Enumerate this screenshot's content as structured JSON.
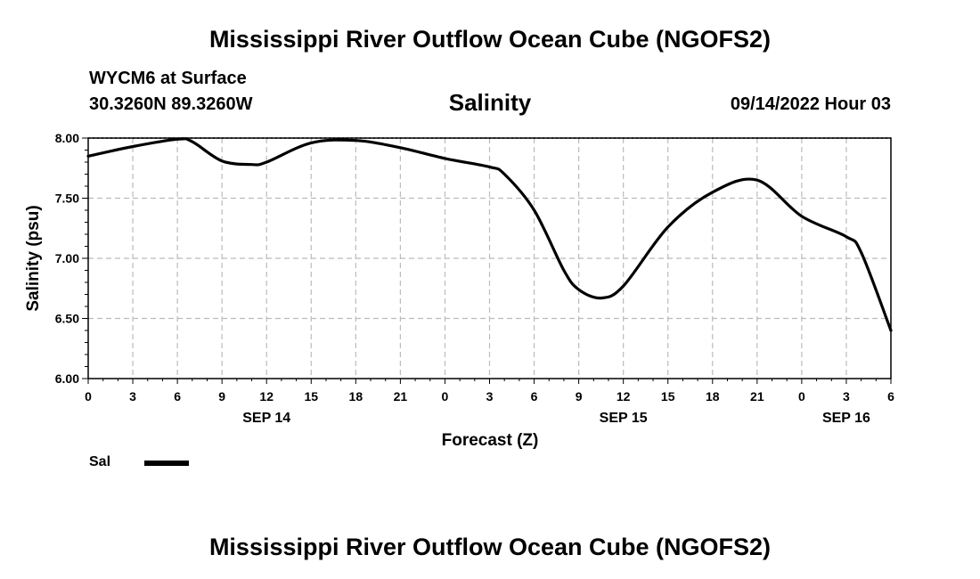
{
  "header": {
    "title_top": "Mississippi River Outflow Ocean Cube (NGOFS2)",
    "station": "WYCM6 at Surface",
    "coords": "30.3260N  89.3260W",
    "variable": "Salinity",
    "timestamp": "09/14/2022 Hour 03"
  },
  "legend": {
    "label": "Sal"
  },
  "footer": {
    "title_bottom": "Mississippi River Outflow Ocean Cube (NGOFS2)"
  },
  "chart_data": {
    "type": "line",
    "title": "Salinity",
    "xlabel": "Forecast (Z)",
    "ylabel": "Salinity (psu)",
    "xlim": [
      0,
      54
    ],
    "ylim": [
      6.0,
      8.0
    ],
    "grid": true,
    "x_ticks": [
      {
        "x": 0,
        "label": "0"
      },
      {
        "x": 3,
        "label": "3"
      },
      {
        "x": 6,
        "label": "6"
      },
      {
        "x": 9,
        "label": "9"
      },
      {
        "x": 12,
        "label": "12"
      },
      {
        "x": 15,
        "label": "15"
      },
      {
        "x": 18,
        "label": "18"
      },
      {
        "x": 21,
        "label": "21"
      },
      {
        "x": 24,
        "label": "0"
      },
      {
        "x": 27,
        "label": "3"
      },
      {
        "x": 30,
        "label": "6"
      },
      {
        "x": 33,
        "label": "9"
      },
      {
        "x": 36,
        "label": "12"
      },
      {
        "x": 39,
        "label": "15"
      },
      {
        "x": 42,
        "label": "18"
      },
      {
        "x": 45,
        "label": "21"
      },
      {
        "x": 48,
        "label": "0"
      },
      {
        "x": 51,
        "label": "3"
      },
      {
        "x": 54,
        "label": "6"
      }
    ],
    "date_labels": [
      {
        "x": 12,
        "label": "SEP 14"
      },
      {
        "x": 36,
        "label": "SEP 15"
      },
      {
        "x": 51,
        "label": "SEP 16"
      }
    ],
    "y_ticks": [
      {
        "y": 6.0,
        "label": "6.00"
      },
      {
        "y": 6.5,
        "label": "6.50"
      },
      {
        "y": 7.0,
        "label": "7.00"
      },
      {
        "y": 7.5,
        "label": "7.50"
      },
      {
        "y": 8.0,
        "label": "8.00"
      }
    ],
    "series": [
      {
        "name": "Sal",
        "x": [
          0,
          3,
          6,
          7,
          9,
          11,
          12,
          15,
          18,
          21,
          24,
          27,
          28,
          30,
          32,
          33,
          34.5,
          36,
          39,
          42,
          45,
          48,
          51,
          52,
          54
        ],
        "values": [
          7.85,
          7.93,
          7.99,
          7.97,
          7.81,
          7.78,
          7.8,
          7.96,
          7.98,
          7.92,
          7.83,
          7.76,
          7.7,
          7.4,
          6.9,
          6.74,
          6.67,
          6.77,
          7.26,
          7.55,
          7.65,
          7.35,
          7.18,
          7.05,
          6.4
        ]
      }
    ]
  }
}
